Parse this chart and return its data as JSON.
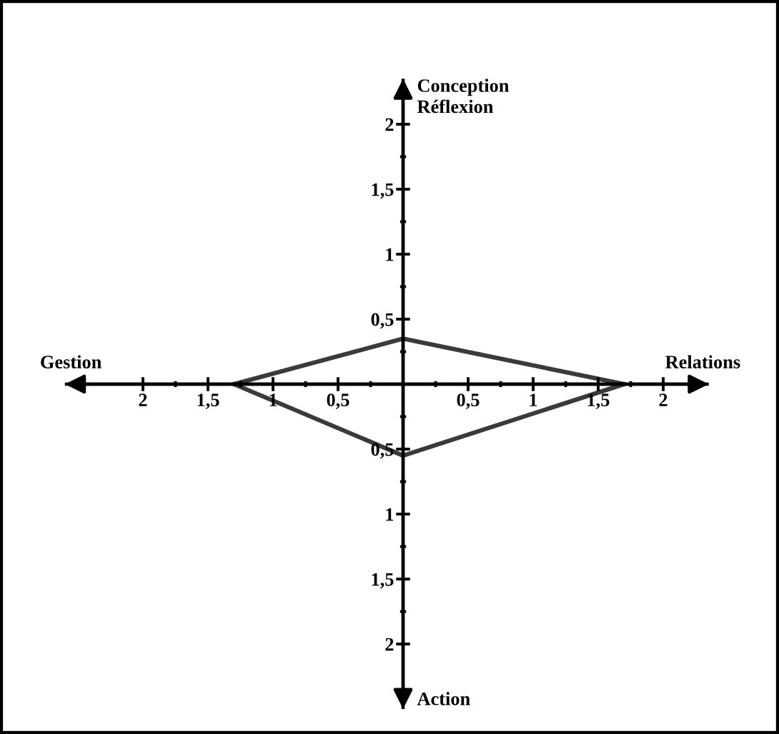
{
  "chart_data": {
    "type": "line",
    "x": [
      -1.3,
      0,
      1.7
    ],
    "series": [
      {
        "color": "#3a3a3a",
        "values": [
          0,
          0.35,
          0
        ]
      },
      {
        "color": "#3a3a3a",
        "values": [
          0,
          -0.55,
          0
        ]
      }
    ],
    "xlim": [
      -2.6,
      2.35
    ],
    "ylim": [
      -2.5,
      2.35
    ],
    "xticks": [
      {
        "value": -2,
        "label": "2"
      },
      {
        "value": -1.75,
        "label": null
      },
      {
        "value": -1.5,
        "label": "1,5"
      },
      {
        "value": -1.25,
        "label": null
      },
      {
        "value": -1,
        "label": "1"
      },
      {
        "value": -0.75,
        "label": null
      },
      {
        "value": -0.5,
        "label": "0,5"
      },
      {
        "value": -0.25,
        "label": null
      },
      {
        "value": 0.25,
        "label": null
      },
      {
        "value": 0.5,
        "label": "0,5"
      },
      {
        "value": 0.75,
        "label": null
      },
      {
        "value": 1,
        "label": "1"
      },
      {
        "value": 1.25,
        "label": null
      },
      {
        "value": 1.5,
        "label": "1,5"
      },
      {
        "value": 1.75,
        "label": null
      },
      {
        "value": 2,
        "label": "2"
      }
    ],
    "yticks": [
      {
        "value": -2,
        "label": "2"
      },
      {
        "value": -1.75,
        "label": null
      },
      {
        "value": -1.5,
        "label": "1,5"
      },
      {
        "value": -1.25,
        "label": null
      },
      {
        "value": -1,
        "label": "1"
      },
      {
        "value": -0.75,
        "label": null
      },
      {
        "value": -0.5,
        "label": "0,5"
      },
      {
        "value": -0.25,
        "label": null
      },
      {
        "value": 0.25,
        "label": null
      },
      {
        "value": 0.5,
        "label": "0,5"
      },
      {
        "value": 0.75,
        "label": null
      },
      {
        "value": 1,
        "label": "1"
      },
      {
        "value": 1.25,
        "label": null
      },
      {
        "value": 1.5,
        "label": "1,5"
      },
      {
        "value": 1.75,
        "label": null
      },
      {
        "value": 2,
        "label": "2"
      }
    ],
    "annotations": [
      "Conception\nRéflexion",
      "Relations",
      "Action",
      "Gestion"
    ]
  }
}
